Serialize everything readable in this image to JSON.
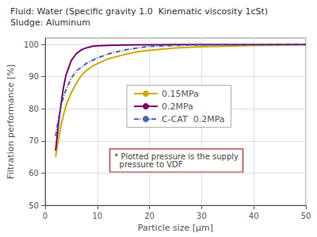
{
  "chart_data": {
    "type": "line",
    "title": "Fluid: Water (Specific gravity 1.0  Kinematic viscosity 1cSt)",
    "subtitle": "Sludge: Aluminum",
    "xlabel": "Particle size [μm]",
    "ylabel": "Filtration performance [%]",
    "x": [
      2.0,
      2.5,
      3.0,
      3.5,
      4.0,
      5.0,
      6.0,
      7.0,
      8.0,
      9.0,
      10.0,
      12.0,
      15.0,
      18.0,
      20.0,
      25.0,
      30.0,
      35.0,
      40.0,
      50.0
    ],
    "series": [
      {
        "name": "0.15MPa",
        "color": "#d4a800",
        "line_style": "solid",
        "values": [
          65.0,
          70.0,
          74.5,
          78.0,
          81.0,
          85.0,
          88.0,
          90.5,
          92.0,
          93.2,
          94.0,
          95.5,
          96.8,
          97.8,
          98.2,
          98.9,
          99.3,
          99.5,
          99.7,
          99.9
        ]
      },
      {
        "name": "0.2MPa",
        "color": "#7a006e",
        "line_style": "solid",
        "values": [
          67.0,
          74.5,
          81.0,
          86.5,
          90.5,
          95.0,
          97.2,
          98.4,
          99.0,
          99.4,
          99.6,
          99.75,
          99.85,
          99.9,
          99.93,
          99.96,
          99.98,
          99.99,
          99.99,
          100.0
        ]
      },
      {
        "name": "C-CAT  0.2MPa",
        "color": "#4466aa",
        "line_style": "dashdot",
        "values": [
          71.5,
          76.5,
          80.5,
          83.5,
          86.0,
          89.5,
          91.8,
          93.0,
          94.2,
          95.0,
          95.8,
          97.0,
          98.2,
          99.0,
          99.4,
          99.7,
          99.85,
          99.92,
          99.95,
          99.98
        ]
      }
    ],
    "xlim": [
      0,
      50
    ],
    "ylim": [
      50,
      102
    ],
    "xticks": [
      0,
      10,
      20,
      30,
      40,
      50
    ],
    "yticks": [
      50,
      60,
      70,
      80,
      90,
      100
    ],
    "grid": true,
    "legend": "center",
    "annotation": "* Plotted pressure is the supply\n  pressure to VDF"
  }
}
